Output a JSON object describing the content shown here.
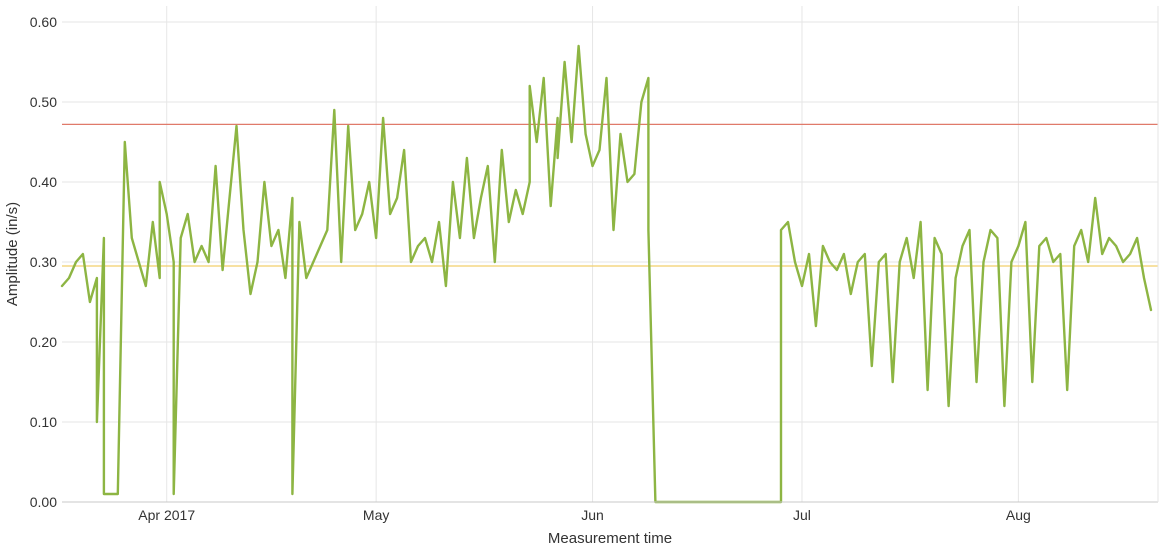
{
  "chart_data": {
    "type": "line",
    "xlabel": "Measurement time",
    "ylabel": "Amplitude (in/s)",
    "xlim": [
      "2017-03-17",
      "2017-08-21"
    ],
    "ylim": [
      0,
      0.62
    ],
    "y_ticks": [
      "0.00",
      "0.10",
      "0.20",
      "0.30",
      "0.40",
      "0.50",
      "0.60"
    ],
    "x_ticks": [
      {
        "date": "2017-04-01",
        "label": "Apr 2017"
      },
      {
        "date": "2017-05-01",
        "label": "May"
      },
      {
        "date": "2017-06-01",
        "label": "Jun"
      },
      {
        "date": "2017-07-01",
        "label": "Jul"
      },
      {
        "date": "2017-08-01",
        "label": "Aug"
      }
    ],
    "grid": true,
    "thresholds": [
      {
        "value": 0.472,
        "color": "#e07a6a"
      },
      {
        "value": 0.295,
        "color": "#f2cf6b"
      }
    ],
    "series": [
      {
        "color": "#8db543",
        "points": [
          [
            "2017-03-17",
            0.27
          ],
          [
            "2017-03-18",
            0.28
          ],
          [
            "2017-03-19",
            0.3
          ],
          [
            "2017-03-20",
            0.31
          ],
          [
            "2017-03-21",
            0.25
          ],
          [
            "2017-03-22",
            0.28
          ],
          [
            "2017-03-22",
            0.1
          ],
          [
            "2017-03-23",
            0.33
          ],
          [
            "2017-03-23",
            0.01
          ],
          [
            "2017-03-24",
            0.01
          ],
          [
            "2017-03-25",
            0.01
          ],
          [
            "2017-03-26",
            0.45
          ],
          [
            "2017-03-27",
            0.33
          ],
          [
            "2017-03-28",
            0.3
          ],
          [
            "2017-03-29",
            0.27
          ],
          [
            "2017-03-30",
            0.35
          ],
          [
            "2017-03-31",
            0.28
          ],
          [
            "2017-03-31",
            0.4
          ],
          [
            "2017-04-01",
            0.36
          ],
          [
            "2017-04-02",
            0.3
          ],
          [
            "2017-04-02",
            0.01
          ],
          [
            "2017-04-03",
            0.33
          ],
          [
            "2017-04-04",
            0.36
          ],
          [
            "2017-04-05",
            0.3
          ],
          [
            "2017-04-06",
            0.32
          ],
          [
            "2017-04-07",
            0.3
          ],
          [
            "2017-04-08",
            0.42
          ],
          [
            "2017-04-09",
            0.29
          ],
          [
            "2017-04-10",
            0.38
          ],
          [
            "2017-04-11",
            0.47
          ],
          [
            "2017-04-12",
            0.34
          ],
          [
            "2017-04-13",
            0.26
          ],
          [
            "2017-04-14",
            0.3
          ],
          [
            "2017-04-15",
            0.4
          ],
          [
            "2017-04-16",
            0.32
          ],
          [
            "2017-04-17",
            0.34
          ],
          [
            "2017-04-18",
            0.28
          ],
          [
            "2017-04-19",
            0.38
          ],
          [
            "2017-04-19",
            0.01
          ],
          [
            "2017-04-20",
            0.35
          ],
          [
            "2017-04-21",
            0.28
          ],
          [
            "2017-04-22",
            0.3
          ],
          [
            "2017-04-23",
            0.32
          ],
          [
            "2017-04-24",
            0.34
          ],
          [
            "2017-04-25",
            0.49
          ],
          [
            "2017-04-26",
            0.3
          ],
          [
            "2017-04-27",
            0.47
          ],
          [
            "2017-04-28",
            0.34
          ],
          [
            "2017-04-29",
            0.36
          ],
          [
            "2017-04-30",
            0.4
          ],
          [
            "2017-05-01",
            0.33
          ],
          [
            "2017-05-02",
            0.48
          ],
          [
            "2017-05-03",
            0.36
          ],
          [
            "2017-05-04",
            0.38
          ],
          [
            "2017-05-05",
            0.44
          ],
          [
            "2017-05-06",
            0.3
          ],
          [
            "2017-05-07",
            0.32
          ],
          [
            "2017-05-08",
            0.33
          ],
          [
            "2017-05-09",
            0.3
          ],
          [
            "2017-05-10",
            0.35
          ],
          [
            "2017-05-11",
            0.27
          ],
          [
            "2017-05-12",
            0.4
          ],
          [
            "2017-05-13",
            0.33
          ],
          [
            "2017-05-14",
            0.43
          ],
          [
            "2017-05-15",
            0.33
          ],
          [
            "2017-05-16",
            0.38
          ],
          [
            "2017-05-17",
            0.42
          ],
          [
            "2017-05-18",
            0.3
          ],
          [
            "2017-05-19",
            0.44
          ],
          [
            "2017-05-20",
            0.35
          ],
          [
            "2017-05-21",
            0.39
          ],
          [
            "2017-05-22",
            0.36
          ],
          [
            "2017-05-23",
            0.4
          ],
          [
            "2017-05-23",
            0.52
          ],
          [
            "2017-05-24",
            0.45
          ],
          [
            "2017-05-25",
            0.53
          ],
          [
            "2017-05-26",
            0.37
          ],
          [
            "2017-05-27",
            0.48
          ],
          [
            "2017-05-27",
            0.43
          ],
          [
            "2017-05-28",
            0.55
          ],
          [
            "2017-05-29",
            0.45
          ],
          [
            "2017-05-30",
            0.57
          ],
          [
            "2017-05-31",
            0.46
          ],
          [
            "2017-06-01",
            0.42
          ],
          [
            "2017-06-02",
            0.44
          ],
          [
            "2017-06-03",
            0.53
          ],
          [
            "2017-06-04",
            0.34
          ],
          [
            "2017-06-05",
            0.46
          ],
          [
            "2017-06-06",
            0.4
          ],
          [
            "2017-06-07",
            0.41
          ],
          [
            "2017-06-08",
            0.5
          ],
          [
            "2017-06-09",
            0.53
          ],
          [
            "2017-06-09",
            0.34
          ],
          [
            "2017-06-10",
            0.0
          ],
          [
            "2017-06-28",
            0.0
          ],
          [
            "2017-06-28",
            0.34
          ],
          [
            "2017-06-29",
            0.35
          ],
          [
            "2017-06-30",
            0.3
          ],
          [
            "2017-07-01",
            0.27
          ],
          [
            "2017-07-02",
            0.31
          ],
          [
            "2017-07-03",
            0.22
          ],
          [
            "2017-07-04",
            0.32
          ],
          [
            "2017-07-05",
            0.3
          ],
          [
            "2017-07-06",
            0.29
          ],
          [
            "2017-07-07",
            0.31
          ],
          [
            "2017-07-08",
            0.26
          ],
          [
            "2017-07-09",
            0.3
          ],
          [
            "2017-07-10",
            0.31
          ],
          [
            "2017-07-11",
            0.17
          ],
          [
            "2017-07-12",
            0.3
          ],
          [
            "2017-07-13",
            0.31
          ],
          [
            "2017-07-14",
            0.15
          ],
          [
            "2017-07-15",
            0.3
          ],
          [
            "2017-07-16",
            0.33
          ],
          [
            "2017-07-17",
            0.28
          ],
          [
            "2017-07-18",
            0.35
          ],
          [
            "2017-07-19",
            0.14
          ],
          [
            "2017-07-20",
            0.33
          ],
          [
            "2017-07-21",
            0.31
          ],
          [
            "2017-07-22",
            0.12
          ],
          [
            "2017-07-23",
            0.28
          ],
          [
            "2017-07-24",
            0.32
          ],
          [
            "2017-07-25",
            0.34
          ],
          [
            "2017-07-26",
            0.15
          ],
          [
            "2017-07-27",
            0.3
          ],
          [
            "2017-07-28",
            0.34
          ],
          [
            "2017-07-29",
            0.33
          ],
          [
            "2017-07-30",
            0.12
          ],
          [
            "2017-07-31",
            0.3
          ],
          [
            "2017-08-01",
            0.32
          ],
          [
            "2017-08-02",
            0.35
          ],
          [
            "2017-08-03",
            0.15
          ],
          [
            "2017-08-04",
            0.32
          ],
          [
            "2017-08-05",
            0.33
          ],
          [
            "2017-08-06",
            0.3
          ],
          [
            "2017-08-07",
            0.31
          ],
          [
            "2017-08-08",
            0.14
          ],
          [
            "2017-08-09",
            0.32
          ],
          [
            "2017-08-10",
            0.34
          ],
          [
            "2017-08-11",
            0.3
          ],
          [
            "2017-08-12",
            0.38
          ],
          [
            "2017-08-13",
            0.31
          ],
          [
            "2017-08-14",
            0.33
          ],
          [
            "2017-08-15",
            0.32
          ],
          [
            "2017-08-16",
            0.3
          ],
          [
            "2017-08-17",
            0.31
          ],
          [
            "2017-08-18",
            0.33
          ],
          [
            "2017-08-19",
            0.28
          ],
          [
            "2017-08-20",
            0.24
          ]
        ]
      }
    ]
  }
}
